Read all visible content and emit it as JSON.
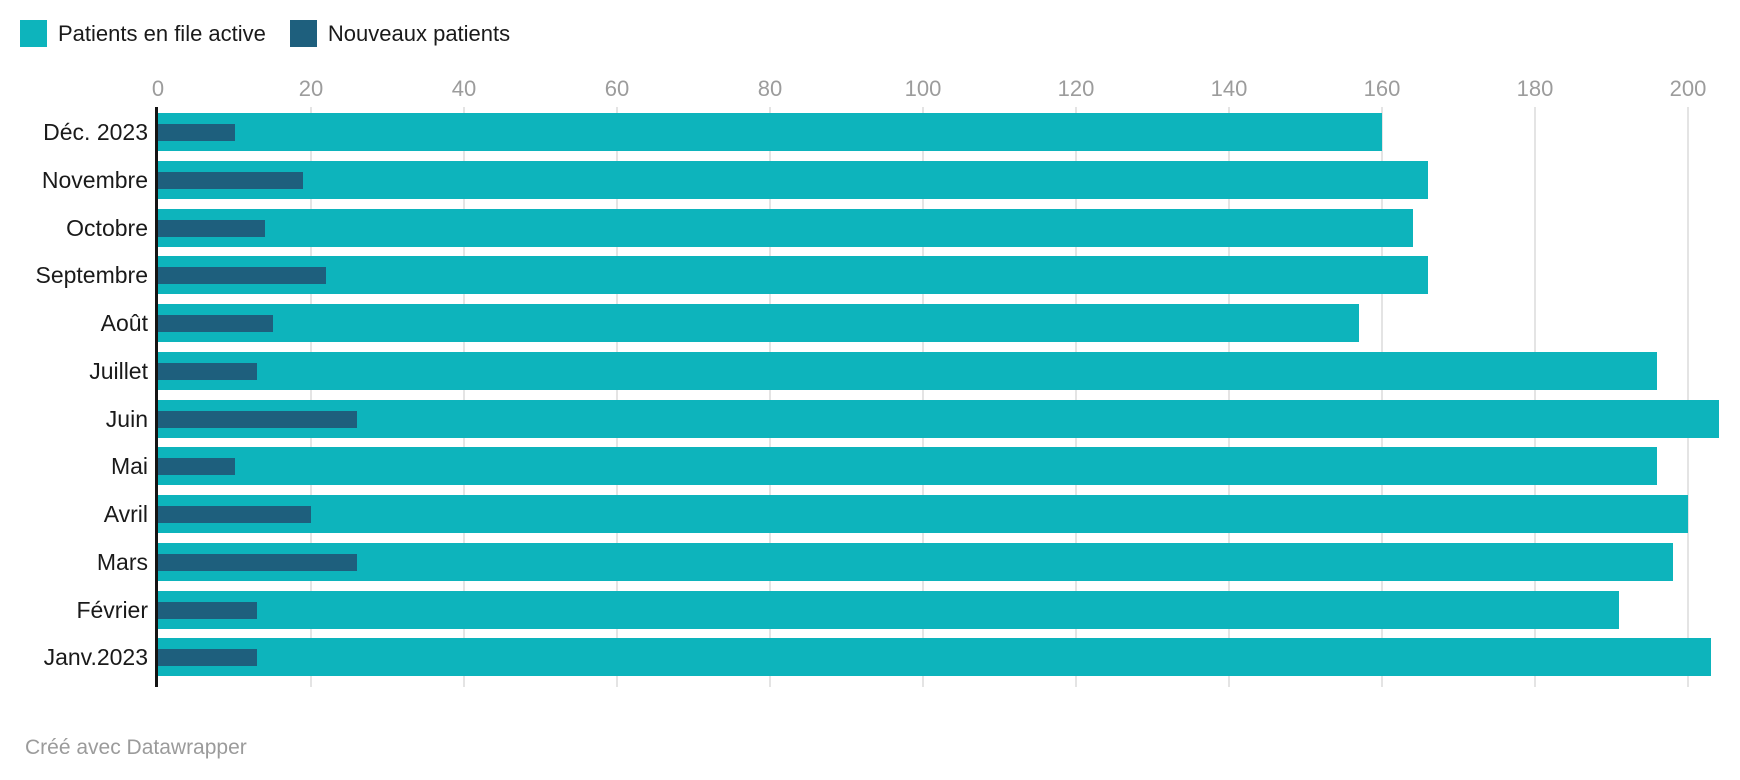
{
  "legend": {
    "items": [
      {
        "label": "Patients en file active",
        "color": "#0db4bc"
      },
      {
        "label": "Nouveaux patients",
        "color": "#1e5f7d"
      }
    ]
  },
  "footer": {
    "credit": "Créé avec Datawrapper"
  },
  "colors": {
    "series_main": "#0db4bc",
    "series_sub": "#1e5f7d",
    "axis_line": "#141414",
    "gridline": "#e4e4e4",
    "tick_text": "#9c9c9c",
    "category_text": "#1a1a1a",
    "footer_text": "#9b9b9b"
  },
  "chart_data": {
    "type": "bar",
    "orientation": "horizontal",
    "title": "",
    "xlabel": "",
    "ylabel": "",
    "categories": [
      "Déc. 2023",
      "Novembre",
      "Octobre",
      "Septembre",
      "Août",
      "Juillet",
      "Juin",
      "Mai",
      "Avril",
      "Mars",
      "Février",
      "Janv.2023"
    ],
    "series": [
      {
        "name": "Patients en file active",
        "color": "#0db4bc",
        "values": [
          160,
          166,
          164,
          166,
          157,
          196,
          204,
          196,
          200,
          198,
          191,
          203
        ]
      },
      {
        "name": "Nouveaux patients",
        "color": "#1e5f7d",
        "values": [
          10,
          19,
          14,
          22,
          15,
          13,
          26,
          10,
          20,
          26,
          13,
          13
        ]
      }
    ],
    "x_ticks": [
      0,
      20,
      40,
      60,
      80,
      100,
      120,
      140,
      160,
      180,
      200
    ],
    "xlim": [
      0,
      207
    ],
    "grid": true,
    "legend_position": "top-left",
    "bar_style": "overlaid"
  }
}
